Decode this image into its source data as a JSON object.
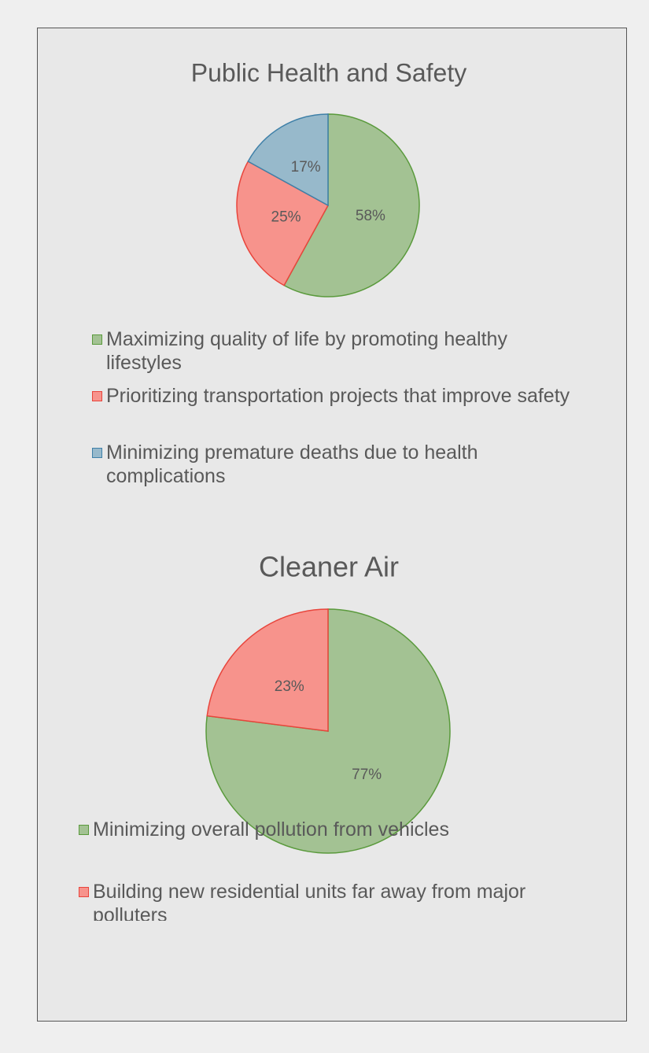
{
  "chart_data": [
    {
      "type": "pie",
      "title": "Public Health and Safety",
      "categories": [
        "Maximizing quality of life by promoting healthy lifestyles",
        "Prioritizing transportation projects that improve safety",
        "Minimizing premature deaths due to health complications"
      ],
      "values": [
        58,
        25,
        17
      ],
      "value_labels": [
        "58%",
        "25%",
        "17%"
      ],
      "colors": [
        "#a3c293",
        "#f7938c",
        "#97b9cb"
      ],
      "edge_colors": [
        "#5a9a3c",
        "#e8453c",
        "#3f80a8"
      ]
    },
    {
      "type": "pie",
      "title": "Cleaner Air",
      "categories": [
        "Minimizing overall pollution from vehicles",
        "Building new residential units far away from major polluters"
      ],
      "values": [
        77,
        23
      ],
      "value_labels": [
        "77%",
        "23%"
      ],
      "colors": [
        "#a3c293",
        "#f7938c"
      ],
      "edge_colors": [
        "#5a9a3c",
        "#e8453c"
      ]
    }
  ]
}
